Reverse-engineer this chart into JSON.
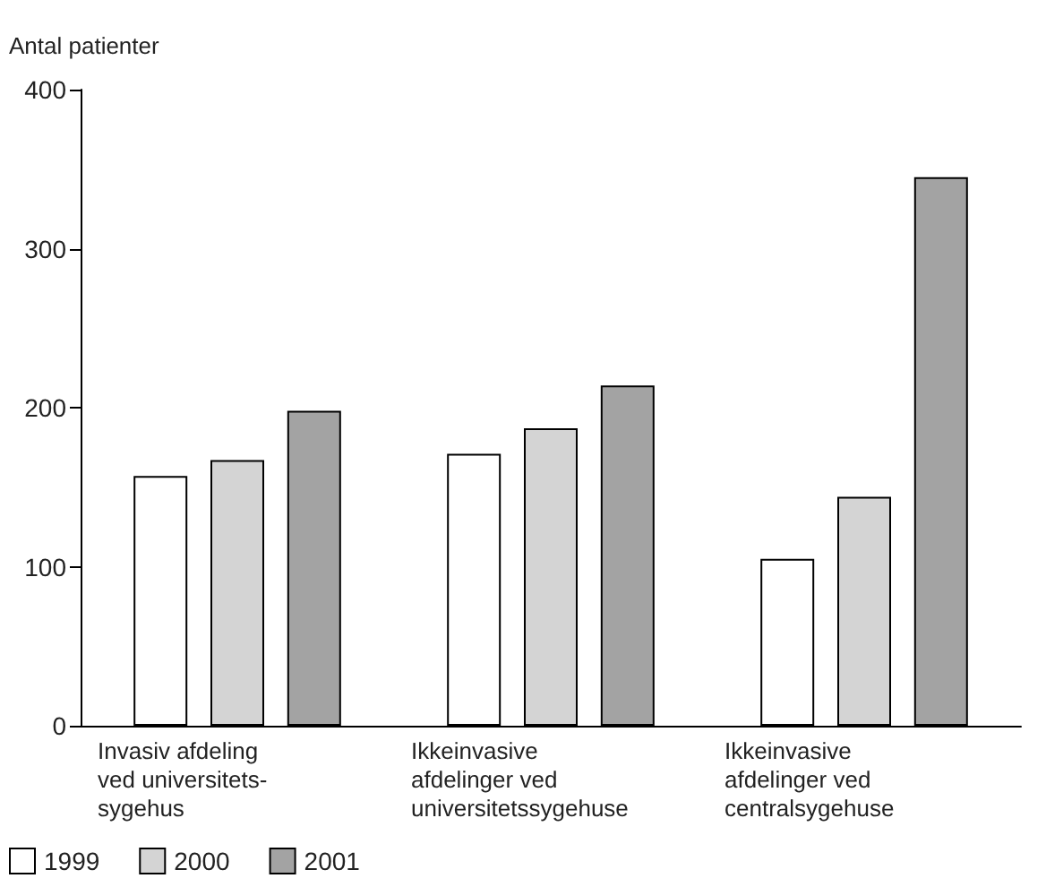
{
  "chart_data": {
    "type": "bar",
    "ylabel": "Antal patienter",
    "categories": [
      "Invasiv afdeling\nved universitets-\nsygehus",
      "Ikkeinvasive\nafdelinger ved\nuniversitetssygehuse",
      "Ikkeinvasive\nafdelinger ved\ncentralsygehuse"
    ],
    "series": [
      {
        "name": "1999",
        "color": "#ffffff",
        "values": [
          157,
          171,
          105
        ]
      },
      {
        "name": "2000",
        "color": "#d4d4d4",
        "values": [
          167,
          187,
          144
        ]
      },
      {
        "name": "2001",
        "color": "#a3a3a3",
        "values": [
          198,
          214,
          345
        ]
      }
    ],
    "ylim": [
      0,
      400
    ],
    "yticks": [
      0,
      100,
      200,
      300,
      400
    ],
    "grid": false,
    "legend": "bottom left"
  }
}
